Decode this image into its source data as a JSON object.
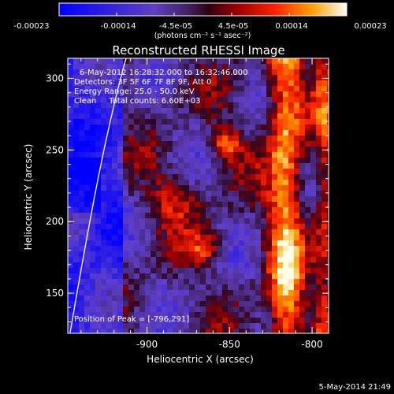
{
  "colorbar": {
    "ticks": [
      "-0.00023",
      "-0.00014",
      "-4.5e-05",
      "4.5e-05",
      "0.00014",
      "0.00023"
    ],
    "unit_label": "(photons cm⁻² s⁻¹ asec⁻²)"
  },
  "chart_data": {
    "type": "heatmap",
    "title": "Reconstructed RHESSI Image",
    "xlabel": "Heliocentric X (arcsec)",
    "ylabel": "Heliocentric Y (arcsec)",
    "xlim": [
      -948,
      -790
    ],
    "ylim": [
      122,
      314
    ],
    "xticks": [
      -900,
      -850,
      -800
    ],
    "yticks": [
      150,
      200,
      250,
      300
    ],
    "xtick_labels": [
      "-900",
      "-850",
      "-800"
    ],
    "ytick_labels": [
      "150",
      "200",
      "250",
      "300"
    ],
    "color_range": [
      -0.00023,
      0.00023
    ],
    "annotations": {
      "time_range": "6-May-2012 16:28:32.000 to 16:32:46.000",
      "detectors": "Detectors: 3F 5F 6F 7F 8F 9F, Att 0",
      "energy": "Energy Range: 25.0 - 50.0 keV",
      "clean": "Clean     Total counts: 6.60E+03",
      "peak": "Position of Peak = [-796,291]"
    },
    "peak_position": [
      -796,
      291
    ],
    "total_counts": "6.60E+03",
    "limb_visible": true
  },
  "footer": {
    "timestamp": "5-May-2014 21:49"
  }
}
